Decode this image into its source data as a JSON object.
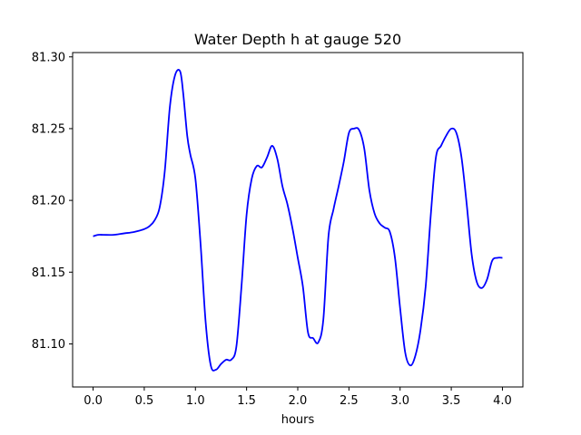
{
  "chart_data": {
    "type": "line",
    "title": "Water Depth h at gauge 520",
    "xlabel": "hours",
    "ylabel": "",
    "xlim": [
      -0.2,
      4.2
    ],
    "ylim": [
      81.07,
      81.303
    ],
    "x_ticks": [
      0.0,
      0.5,
      1.0,
      1.5,
      2.0,
      2.5,
      3.0,
      3.5,
      4.0
    ],
    "x_tick_labels": [
      "0.0",
      "0.5",
      "1.0",
      "1.5",
      "2.0",
      "2.5",
      "3.0",
      "3.5",
      "4.0"
    ],
    "y_ticks": [
      81.1,
      81.15,
      81.2,
      81.25,
      81.3
    ],
    "y_tick_labels": [
      "81.10",
      "81.15",
      "81.20",
      "81.25",
      "81.30"
    ],
    "grid": false,
    "series": [
      {
        "color": "#0000ff",
        "x": [
          0.0,
          0.05,
          0.1,
          0.2,
          0.3,
          0.4,
          0.5,
          0.55,
          0.6,
          0.65,
          0.7,
          0.75,
          0.8,
          0.85,
          0.88,
          0.92,
          0.95,
          1.0,
          1.05,
          1.1,
          1.15,
          1.2,
          1.25,
          1.3,
          1.35,
          1.4,
          1.45,
          1.5,
          1.55,
          1.6,
          1.65,
          1.7,
          1.75,
          1.8,
          1.85,
          1.9,
          1.95,
          2.0,
          2.05,
          2.1,
          2.15,
          2.2,
          2.25,
          2.3,
          2.35,
          2.4,
          2.45,
          2.5,
          2.55,
          2.6,
          2.65,
          2.7,
          2.75,
          2.8,
          2.85,
          2.9,
          2.95,
          3.0,
          3.05,
          3.1,
          3.15,
          3.2,
          3.25,
          3.3,
          3.35,
          3.4,
          3.45,
          3.5,
          3.55,
          3.6,
          3.65,
          3.7,
          3.75,
          3.8,
          3.85,
          3.9,
          3.95,
          4.0
        ],
        "values": [
          81.175,
          81.176,
          81.176,
          81.176,
          81.177,
          81.178,
          81.18,
          81.182,
          81.186,
          81.195,
          81.22,
          81.265,
          81.287,
          81.29,
          81.275,
          81.245,
          81.232,
          81.215,
          81.17,
          81.115,
          81.085,
          81.082,
          81.086,
          81.089,
          81.089,
          81.098,
          81.14,
          81.19,
          81.215,
          81.224,
          81.223,
          81.23,
          81.238,
          81.229,
          81.21,
          81.197,
          81.18,
          81.16,
          81.14,
          81.108,
          81.104,
          81.101,
          81.117,
          81.175,
          81.194,
          81.21,
          81.227,
          81.247,
          81.25,
          81.249,
          81.236,
          81.207,
          81.191,
          81.184,
          81.181,
          81.178,
          81.16,
          81.125,
          81.094,
          81.085,
          81.092,
          81.11,
          81.14,
          81.19,
          81.23,
          81.238,
          81.245,
          81.25,
          81.247,
          81.23,
          81.198,
          81.162,
          81.143,
          81.139,
          81.145,
          81.158,
          81.16,
          81.16
        ]
      }
    ]
  }
}
